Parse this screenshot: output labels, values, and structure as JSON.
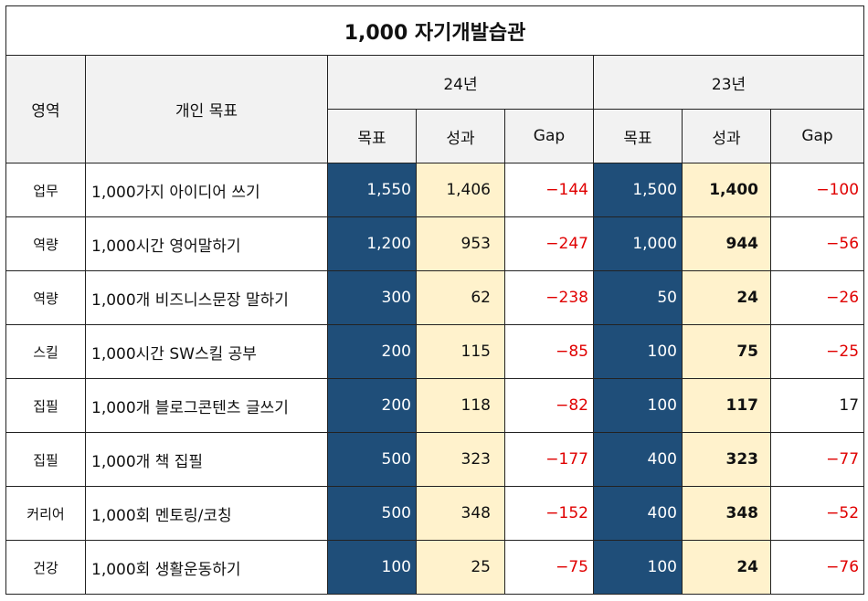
{
  "title": "1,000 자기개발습관",
  "headers": {
    "area": "영역",
    "goal": "개인 목표",
    "year_24": "24년",
    "year_23": "23년",
    "target": "목표",
    "result": "성과",
    "gap": "Gap"
  },
  "rows": [
    {
      "area": "업무",
      "goal": "1,000가지 아이디어 쓰기",
      "t24": "1,550",
      "r24": "1,406",
      "g24": "−144",
      "t23": "1,500",
      "r23": "1,400",
      "g23": "−100"
    },
    {
      "area": "역량",
      "goal": "1,000시간 영어말하기",
      "t24": "1,200",
      "r24": "953",
      "g24": "−247",
      "t23": "1,000",
      "r23": "944",
      "g23": "−56"
    },
    {
      "area": "역량",
      "goal": "1,000개 비즈니스문장 말하기",
      "t24": "300",
      "r24": "62",
      "g24": "−238",
      "t23": "50",
      "r23": "24",
      "g23": "−26"
    },
    {
      "area": "스킬",
      "goal": "1,000시간 SW스킬 공부",
      "t24": "200",
      "r24": "115",
      "g24": "−85",
      "t23": "100",
      "r23": "75",
      "g23": "−25"
    },
    {
      "area": "집필",
      "goal": "1,000개 블로그콘텐츠 글쓰기",
      "t24": "200",
      "r24": "118",
      "g24": "−82",
      "t23": "100",
      "r23": "117",
      "g23": "17"
    },
    {
      "area": "집필",
      "goal": "1,000개 책 집필",
      "t24": "500",
      "r24": "323",
      "g24": "−177",
      "t23": "400",
      "r23": "323",
      "g23": "−77"
    },
    {
      "area": "커리어",
      "goal": "1,000회 멘토링/코칭",
      "t24": "500",
      "r24": "348",
      "g24": "−152",
      "t23": "400",
      "r23": "348",
      "g23": "−52"
    },
    {
      "area": "건강",
      "goal": "1,000회 생활운동하기",
      "t24": "100",
      "r24": "25",
      "g24": "−75",
      "t23": "100",
      "r23": "24",
      "g23": "−76"
    }
  ],
  "colors": {
    "target_bg": "#1f4e79",
    "result_bg": "#fff2cc",
    "negative": "#e00000"
  }
}
